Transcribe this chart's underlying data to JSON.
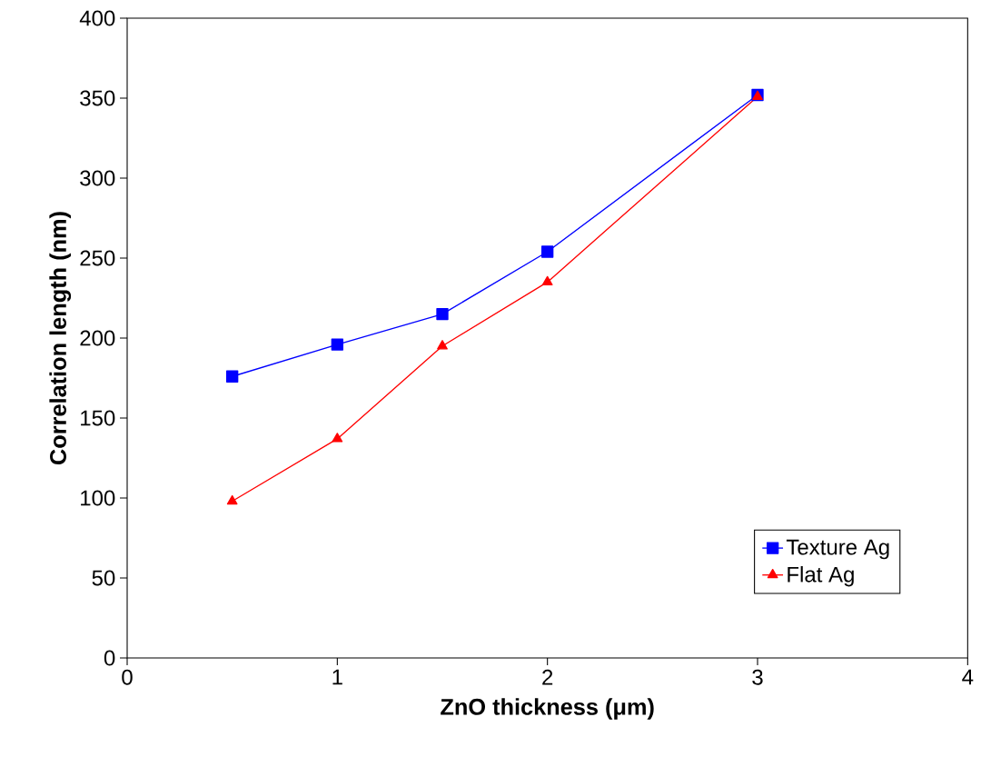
{
  "chart_data": {
    "type": "line",
    "xlabel": "ZnO thickness (μm)",
    "ylabel": "Correlation length (nm)",
    "x": [
      0.5,
      1,
      1.5,
      2,
      3
    ],
    "series": [
      {
        "name": "Texture Ag",
        "color": "#0000ff",
        "marker": "square",
        "values": [
          176,
          196,
          215,
          254,
          352
        ]
      },
      {
        "name": "Flat Ag",
        "color": "#ff0000",
        "marker": "triangle",
        "values": [
          98,
          137,
          195,
          235,
          351
        ]
      }
    ],
    "xlim": [
      0,
      4
    ],
    "xticks": [
      0,
      1,
      2,
      3,
      4
    ],
    "ylim": [
      0,
      400
    ],
    "yticks": [
      0,
      50,
      100,
      150,
      200,
      250,
      300,
      350,
      400
    ],
    "grid": false,
    "legend": "bottom right",
    "line_style": "solid"
  }
}
